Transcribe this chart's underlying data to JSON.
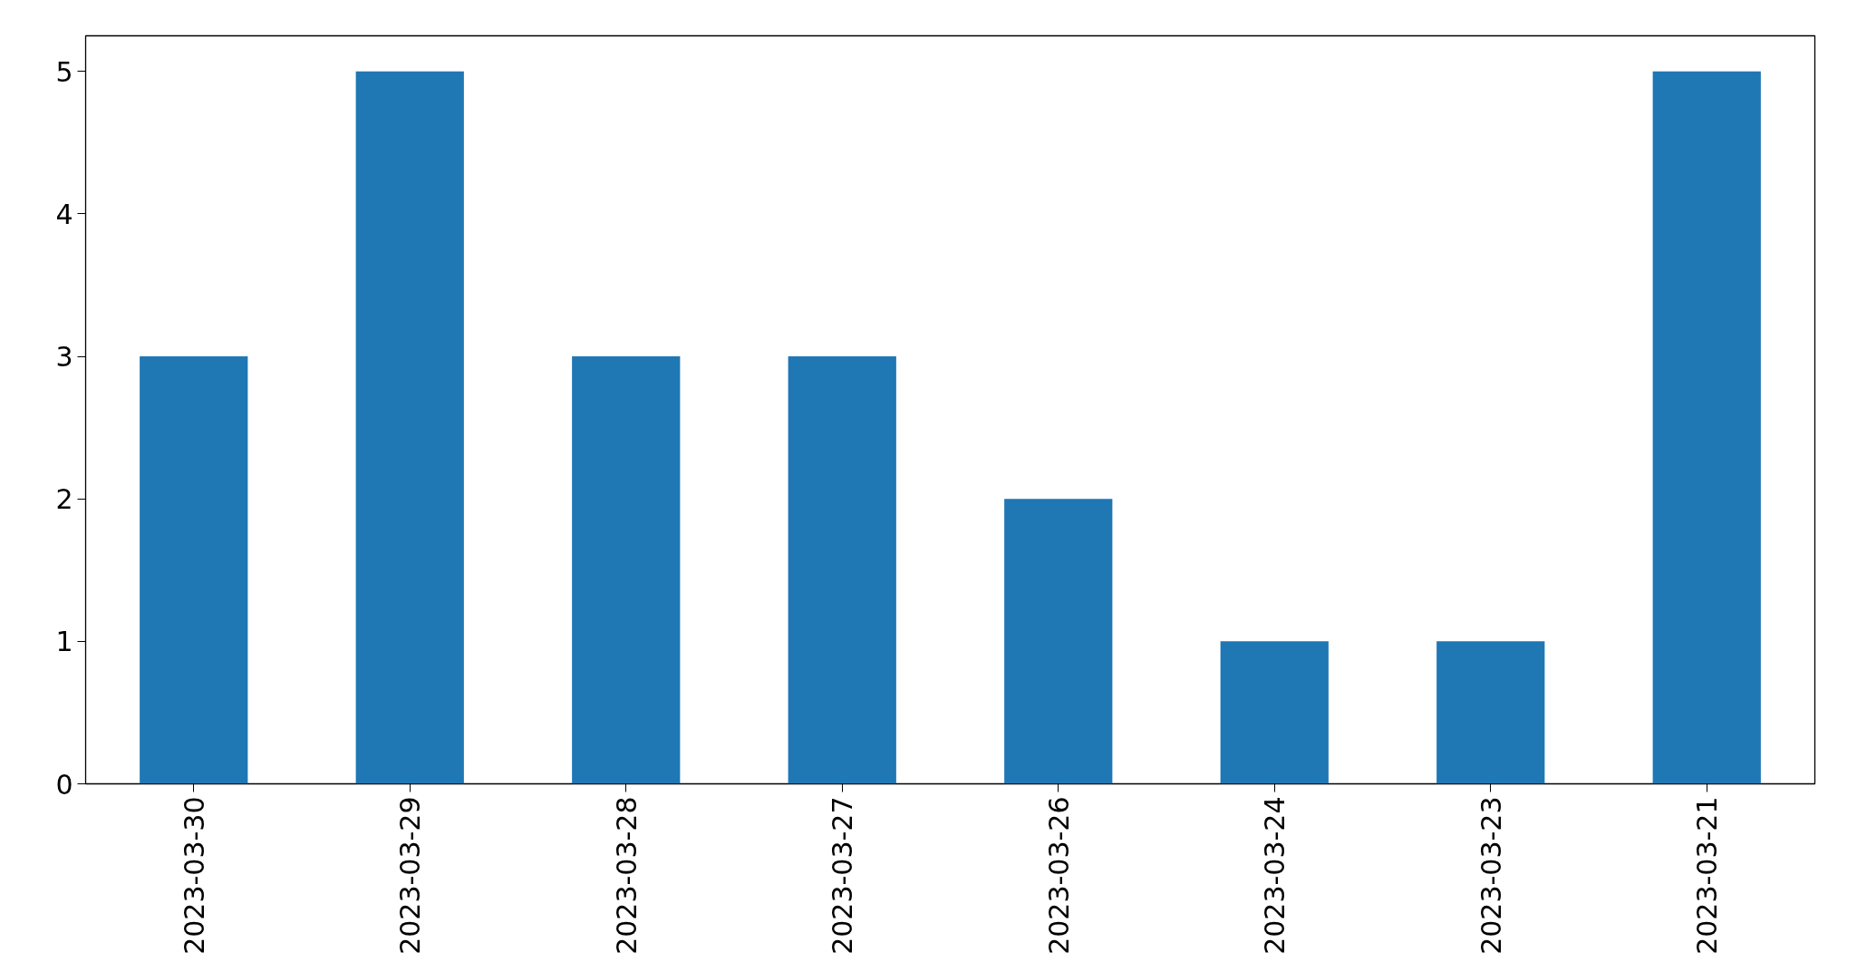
{
  "chart_data": {
    "type": "bar",
    "categories": [
      "2023-03-30",
      "2023-03-29",
      "2023-03-28",
      "2023-03-27",
      "2023-03-26",
      "2023-03-24",
      "2023-03-23",
      "2023-03-21"
    ],
    "values": [
      3,
      5,
      3,
      3,
      2,
      1,
      1,
      5
    ],
    "color": "#1f77b4",
    "ylim": [
      0,
      5.25
    ],
    "yticks": [
      0,
      1,
      2,
      3,
      4,
      5
    ],
    "grid": false
  }
}
